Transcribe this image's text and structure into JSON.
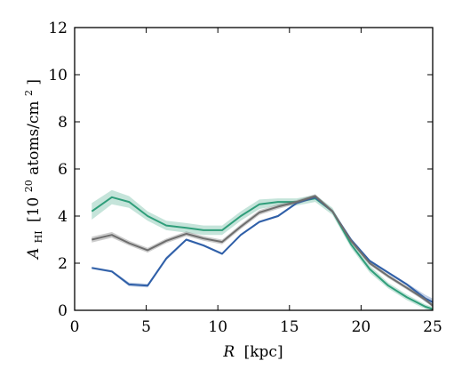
{
  "chart_data": {
    "type": "line",
    "xlabel_var": "R",
    "xlabel_unit": "[kpc]",
    "ylabel_var": "A",
    "ylabel_sub": "HI",
    "ylabel_pre": "[10",
    "ylabel_exp": "20",
    "ylabel_mid": " atoms/cm",
    "ylabel_exp2": "2",
    "ylabel_post": " ]",
    "xlim": [
      0,
      25
    ],
    "ylim": [
      0,
      12
    ],
    "xticks": [
      0,
      5,
      10,
      15,
      20,
      25
    ],
    "yticks": [
      0,
      2,
      4,
      6,
      8,
      10,
      12
    ],
    "grid": false,
    "legend": "none",
    "x": [
      1.2,
      2.6,
      3.8,
      5.1,
      6.4,
      7.8,
      9.0,
      10.3,
      11.6,
      12.9,
      14.2,
      15.5,
      16.8,
      18.0,
      19.3,
      20.6,
      21.9,
      23.2,
      24.5,
      25.0
    ],
    "series": [
      {
        "color": "#2f9e7a",
        "band_opacity": 0.28,
        "values": [
          4.2,
          4.8,
          4.6,
          4.0,
          3.6,
          3.5,
          3.4,
          3.4,
          4.0,
          4.5,
          4.6,
          4.6,
          4.75,
          4.2,
          2.8,
          1.75,
          1.05,
          0.55,
          0.15,
          0.05
        ],
        "spread": [
          0.35,
          0.3,
          0.25,
          0.2,
          0.2,
          0.2,
          0.2,
          0.2,
          0.2,
          0.2,
          0.15,
          0.15,
          0.15,
          0.15,
          0.15,
          0.15,
          0.12,
          0.12,
          0.1,
          0.1
        ]
      },
      {
        "color": "#2f5fa8",
        "band_opacity": 0.3,
        "values": [
          1.8,
          1.65,
          1.1,
          1.05,
          2.2,
          3.0,
          2.75,
          2.4,
          3.2,
          3.75,
          4.0,
          4.55,
          4.8,
          4.2,
          3.0,
          2.1,
          1.6,
          1.1,
          0.5,
          0.35
        ],
        "spread": [
          0.05,
          0.05,
          0.08,
          0.08,
          0.08,
          0.05,
          0.05,
          0.05,
          0.05,
          0.05,
          0.05,
          0.05,
          0.05,
          0.05,
          0.05,
          0.05,
          0.05,
          0.05,
          0.15,
          0.15
        ]
      },
      {
        "color": "#6e6e6e",
        "band_opacity": 0.35,
        "values": [
          3.0,
          3.2,
          2.85,
          2.55,
          2.95,
          3.25,
          3.05,
          2.9,
          3.55,
          4.15,
          4.4,
          4.6,
          4.85,
          4.2,
          2.95,
          2.0,
          1.45,
          0.95,
          0.45,
          0.2
        ],
        "spread": [
          0.12,
          0.12,
          0.1,
          0.1,
          0.1,
          0.1,
          0.1,
          0.1,
          0.1,
          0.1,
          0.1,
          0.08,
          0.08,
          0.08,
          0.08,
          0.08,
          0.08,
          0.08,
          0.08,
          0.08
        ]
      }
    ]
  }
}
